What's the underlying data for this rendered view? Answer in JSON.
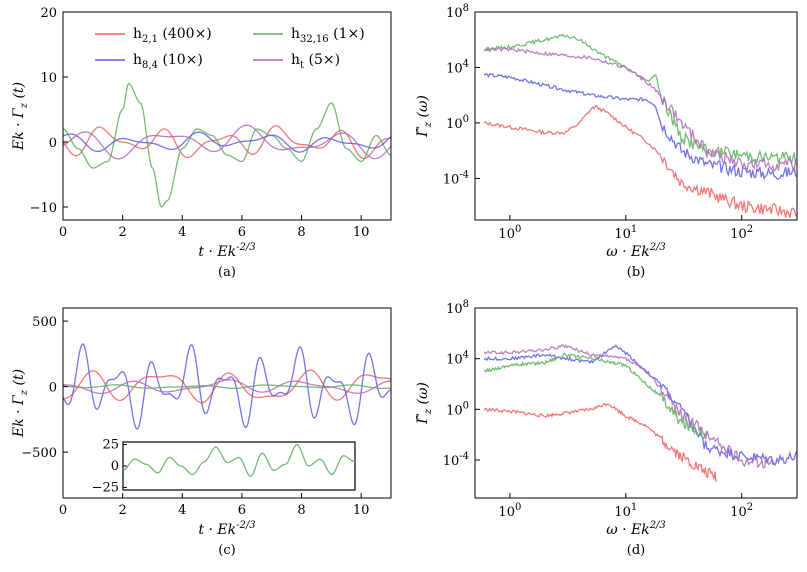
{
  "colors": {
    "red": "#f06060",
    "blue": "#5a5ae8",
    "green": "#5cb05c",
    "purple": "#b06ab8"
  },
  "chart_data": [
    {
      "panel": "(a)",
      "type": "line",
      "xlabel": "t · Ek^{-2/3}",
      "ylabel": "Ek · Γ_z (t)",
      "xlim": [
        0,
        11
      ],
      "ylim": [
        -12,
        20
      ],
      "xticks": [
        0,
        2,
        4,
        6,
        8,
        10
      ],
      "yticks": [
        -10,
        0,
        10,
        20
      ],
      "legend": "top",
      "series": [
        {
          "name": "h_{2,1} (400×)",
          "color": "red",
          "amp": 2.5,
          "freq": 1.6,
          "seed": 1
        },
        {
          "name": "h_{32,16} (1×)",
          "color": "green",
          "amp": 3.0,
          "freq": 1.2,
          "seed": 2,
          "x": [
            0,
            0.5,
            1.0,
            1.5,
            2.0,
            2.2,
            2.6,
            3.0,
            3.3,
            3.5,
            4.0,
            4.5,
            5.0,
            5.5,
            6.0,
            6.5,
            7.0,
            7.5,
            8.0,
            8.5,
            9.0,
            9.5,
            10.0,
            10.5,
            11.0
          ],
          "y": [
            2,
            -1,
            -4,
            -3,
            5,
            9,
            6,
            -4,
            -10,
            -9,
            -1,
            2,
            1,
            -2,
            -3,
            2,
            1,
            -1,
            -3,
            2,
            6,
            -1,
            -3,
            1,
            -2
          ]
        },
        {
          "name": "h_{8,4} (10×)",
          "color": "blue",
          "amp": 1.5,
          "freq": 1.4,
          "seed": 3
        },
        {
          "name": "h_t (5×)",
          "color": "purple",
          "amp": 2.5,
          "freq": 1.1,
          "seed": 4
        }
      ]
    },
    {
      "panel": "(b)",
      "type": "line",
      "xlabel": "ω · Ek^{2/3}",
      "ylabel": "Γ̂_z (ω)",
      "xscale": "log",
      "yscale": "log",
      "xlim": [
        0.5,
        300
      ],
      "ylim": [
        1e-07,
        100000000.0
      ],
      "xticks": [
        "10^0",
        "10^1",
        "10^2"
      ],
      "yticks": [
        "10^-4",
        "10^0",
        "10^4",
        "10^8"
      ],
      "series": [
        {
          "color": "red",
          "x": [
            0.6,
            1,
            2,
            3,
            4,
            5,
            5.5,
            7,
            10,
            15,
            20,
            30,
            50,
            100,
            200,
            300
          ],
          "y": [
            1,
            0.5,
            0.2,
            0.2,
            1,
            10,
            15,
            5,
            0.5,
            0.05,
            0.005,
            5e-05,
            1e-05,
            1e-06,
            5e-07,
            3e-07
          ]
        },
        {
          "color": "blue",
          "x": [
            0.6,
            1,
            2,
            5,
            10,
            15,
            18,
            20,
            30,
            50,
            100,
            200,
            300
          ],
          "y": [
            3000,
            2000,
            500,
            100,
            50,
            50,
            20,
            1,
            0.01,
            0.001,
            0.0003,
            0.0002,
            0.0003
          ]
        },
        {
          "color": "green",
          "x": [
            0.6,
            1,
            2,
            3,
            4,
            6,
            10,
            15,
            18,
            20,
            30,
            50,
            100,
            200,
            300
          ],
          "y": [
            200000,
            300000,
            1000000,
            2000000,
            1000000,
            100000,
            10000,
            1000,
            3000,
            100,
            0.1,
            0.01,
            0.005,
            0.003,
            0.003
          ]
        },
        {
          "color": "purple",
          "x": [
            0.6,
            1,
            2,
            5,
            10,
            15,
            20,
            30,
            50,
            100,
            200,
            300
          ],
          "y": [
            200000,
            200000,
            100000,
            50000,
            10000,
            1000,
            100,
            1,
            0.01,
            0.001,
            0.001,
            0.001
          ]
        }
      ]
    },
    {
      "panel": "(c)",
      "type": "line",
      "xlabel": "t · Ek^{-2/3}",
      "ylabel": "Ek · Γ_z (t)",
      "xlim": [
        0,
        11
      ],
      "ylim": [
        -850,
        600
      ],
      "xticks": [
        0,
        2,
        4,
        6,
        8,
        10
      ],
      "yticks": [
        -500,
        0,
        500
      ],
      "series": [
        {
          "color": "red",
          "amp": 150,
          "freq": 1.3,
          "seed": 5
        },
        {
          "color": "blue",
          "amp": 300,
          "freq": 2.6,
          "seed": 6
        },
        {
          "color": "green",
          "amp": 15,
          "freq": 1.2,
          "seed": 7
        },
        {
          "color": "purple",
          "amp": 60,
          "freq": 1.1,
          "seed": 8
        }
      ],
      "inset": {
        "xlim": [
          0,
          10
        ],
        "ylim": [
          -28,
          28
        ],
        "yticks": [
          -25,
          0,
          25
        ],
        "series": [
          {
            "color": "green",
            "x": [
              0,
              0.5,
              1,
              1.5,
              2,
              2.5,
              3,
              3.5,
              4,
              4.5,
              5,
              5.5,
              6,
              6.5,
              7,
              7.5,
              8,
              8.5,
              9,
              9.5,
              10
            ],
            "y": [
              -5,
              8,
              2,
              -8,
              10,
              0,
              -10,
              5,
              22,
              4,
              10,
              -12,
              15,
              -5,
              2,
              25,
              0,
              8,
              -10,
              12,
              5
            ]
          }
        ]
      }
    },
    {
      "panel": "(d)",
      "type": "line",
      "xlabel": "ω · Ek^{2/3}",
      "ylabel": "Γ̂_z (ω)",
      "xscale": "log",
      "yscale": "log",
      "xlim": [
        0.5,
        300
      ],
      "ylim": [
        1e-07,
        100000000.0
      ],
      "xticks": [
        "10^0",
        "10^1",
        "10^2"
      ],
      "yticks": [
        "10^-4",
        "10^0",
        "10^4",
        "10^8"
      ],
      "series": [
        {
          "color": "red",
          "x": [
            0.6,
            1,
            2,
            5,
            7,
            10,
            15,
            20,
            30,
            50,
            60
          ],
          "y": [
            1,
            0.7,
            0.3,
            1,
            3,
            0.3,
            0.05,
            0.005,
            0.0002,
            1e-05,
            5e-06
          ]
        },
        {
          "color": "blue",
          "x": [
            0.6,
            1,
            2,
            5,
            8,
            10,
            15,
            20,
            30,
            50,
            100,
            200,
            300
          ],
          "y": [
            10000,
            10000,
            20000,
            5000,
            100000,
            30000,
            1000,
            100,
            1,
            0.001,
            0.0002,
            0.0001,
            0.0002
          ]
        },
        {
          "color": "green",
          "x": [
            0.6,
            1,
            2,
            3,
            5,
            10,
            15,
            20,
            30,
            50
          ],
          "y": [
            1000,
            3000,
            5000,
            20000,
            10000,
            3000,
            100,
            10,
            0.1,
            0.01
          ]
        },
        {
          "color": "purple",
          "x": [
            0.6,
            1,
            2,
            3,
            5,
            10,
            15,
            20,
            30,
            50,
            100,
            200
          ],
          "y": [
            30000,
            30000,
            50000,
            100000,
            20000,
            10000,
            1000,
            50,
            0.5,
            0.01,
            0.0001,
            5e-05
          ]
        }
      ]
    }
  ]
}
